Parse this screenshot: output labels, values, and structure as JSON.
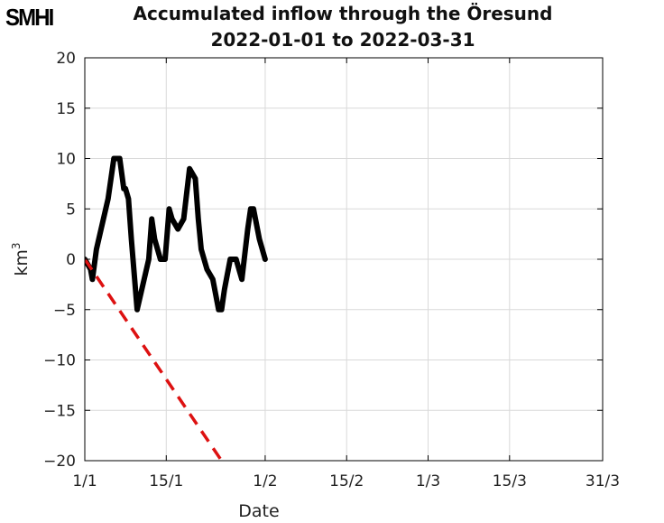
{
  "logo": "SMHI",
  "chart_data": {
    "type": "line",
    "title": "Accumulated inflow through the Öresund",
    "subtitle": "2022-01-01 to 2022-03-31",
    "xlabel": "Date",
    "ylabel": "km",
    "ylabel_sup": "3",
    "xlim": [
      0,
      89
    ],
    "ylim": [
      -20,
      20
    ],
    "x_ticks": [
      0,
      14,
      31,
      45,
      59,
      73,
      89
    ],
    "x_tick_labels": [
      "1/1",
      "15/1",
      "1/2",
      "15/2",
      "1/3",
      "15/3",
      "31/3"
    ],
    "y_ticks": [
      -20,
      -15,
      -10,
      -5,
      0,
      5,
      10,
      15,
      20
    ],
    "y_tick_labels": [
      "−20",
      "−15",
      "−10",
      "−5",
      "0",
      "5",
      "10",
      "15",
      "20"
    ],
    "grid": true,
    "series": [
      {
        "style": "solid",
        "color": "#000000",
        "x": [
          0,
          1,
          1.3,
          2,
          4,
          5,
          6,
          6.7,
          7,
          7.5,
          8,
          9,
          11,
          11.5,
          12,
          13,
          13.8,
          14.5,
          15,
          16,
          17,
          18,
          19,
          19.5,
          20,
          21,
          22,
          23,
          23.5,
          24,
          25,
          26,
          27,
          28,
          28.5,
          29,
          30,
          31
        ],
        "y": [
          0,
          -1,
          -2,
          1,
          6,
          10,
          10,
          7,
          7,
          6,
          2,
          -5,
          0,
          4,
          2,
          0,
          0,
          5,
          4,
          3,
          4,
          9,
          8,
          4,
          1,
          -1,
          -2,
          -5,
          -5,
          -3,
          0,
          0,
          -2,
          3,
          5,
          5,
          2,
          0
        ]
      },
      {
        "style": "dashed",
        "color": "#dd1111",
        "x": [
          0,
          23.5
        ],
        "y": [
          0,
          -20
        ]
      }
    ]
  }
}
